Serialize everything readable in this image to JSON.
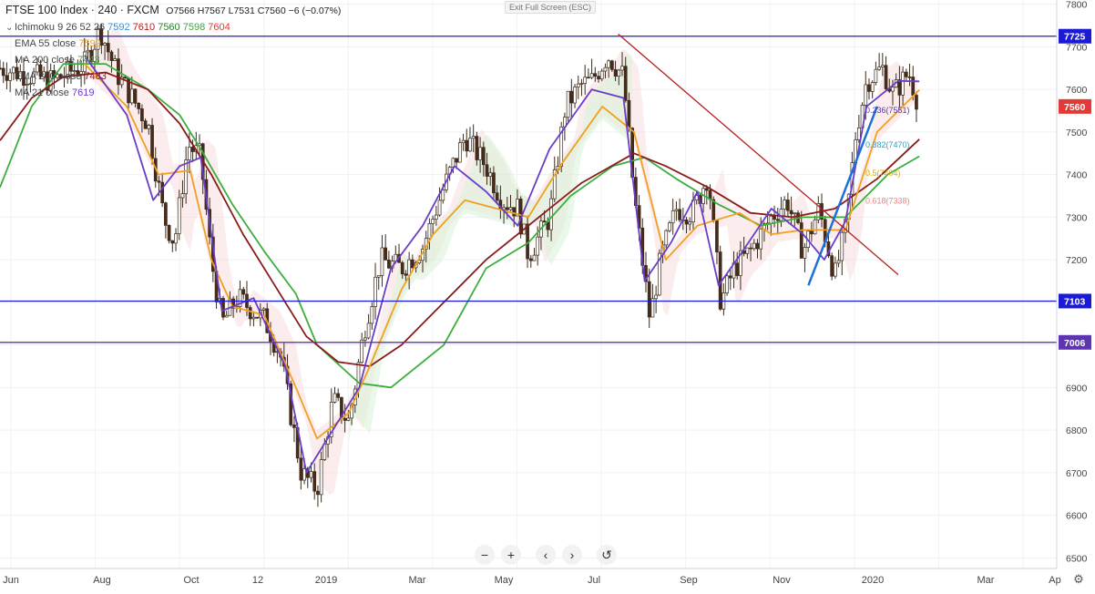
{
  "header": {
    "symbol": "FTSE 100 Index · 240 · FXCM",
    "ohlc": "O7566 H7567 L7531 C7560 −6 (−0.07%)"
  },
  "legend_rows": [
    {
      "chevron": "⌄",
      "name": "Ichimoku 9 26 52 26",
      "values": [
        {
          "text": "7592",
          "color": "#2196f3"
        },
        {
          "text": "7610",
          "color": "#b71c1c"
        },
        {
          "text": "7560",
          "color": "#2e7d32"
        },
        {
          "text": "7598",
          "color": "#43a047"
        },
        {
          "text": "7604",
          "color": "#e53935"
        }
      ]
    },
    {
      "chevron": "",
      "name": "EMA 55 close",
      "values": [
        {
          "text": "7599",
          "color": "#f0a020"
        }
      ]
    },
    {
      "chevron": "",
      "name": "MA 200 close",
      "values": [
        {
          "text": "7443",
          "color": "#43a047"
        }
      ]
    },
    {
      "chevron": "",
      "name": "EMA 200 close",
      "values": [
        {
          "text": "7483",
          "color": "#8b1a1a"
        }
      ]
    },
    {
      "chevron": "",
      "name": "MA 21 close",
      "values": [
        {
          "text": "7619",
          "color": "#6a3dc9"
        }
      ]
    }
  ],
  "toolbar": {
    "exit_fullscreen": "Exit Full Screen (ESC)",
    "zoom_out": "−",
    "zoom_in": "+",
    "scroll_left": "‹",
    "scroll_right": "›",
    "reset": "↺"
  },
  "icons": {
    "settings": "gear-icon"
  },
  "chart_data": {
    "type": "candlestick",
    "y_axis": {
      "min": 6475,
      "max": 7810,
      "ticks": [
        7800,
        7700,
        7600,
        7500,
        7400,
        7300,
        7200,
        7100,
        7000,
        6900,
        6800,
        6700,
        6600,
        6500
      ],
      "side": "right"
    },
    "x_axis_labels": [
      "Jun",
      "Aug",
      "Oct",
      "12",
      "2019",
      "Mar",
      "May",
      "Jul",
      "Sep",
      "Nov",
      "2020",
      "Mar",
      "Ap"
    ],
    "horizontal_levels": [
      {
        "value": 7725,
        "label": "7725",
        "color": "#1b1bd6"
      },
      {
        "value": 7103,
        "label": "7103",
        "color": "#1b1bd6"
      },
      {
        "value": 7006,
        "label": "7006",
        "color": "#5e35b1"
      }
    ],
    "last_price": {
      "value": 7560,
      "label": "7560",
      "color": "#e53935"
    },
    "fib_labels": [
      {
        "text": "0.236(7551)",
        "value": 7551,
        "color": "#5e35b1"
      },
      {
        "text": "0.382(7470)",
        "value": 7470,
        "color": "#26a6c8"
      },
      {
        "text": "0.5(7404)",
        "value": 7404,
        "color": "#d4b000"
      },
      {
        "text": "0.618(7338)",
        "value": 7338,
        "color": "#f08080"
      }
    ],
    "price_path": [
      [
        0,
        7650
      ],
      [
        0.05,
        7620
      ],
      [
        0.08,
        7660
      ],
      [
        0.095,
        7740
      ],
      [
        0.11,
        7640
      ],
      [
        0.14,
        7520
      ],
      [
        0.155,
        7300
      ],
      [
        0.165,
        7240
      ],
      [
        0.178,
        7470
      ],
      [
        0.19,
        7440
      ],
      [
        0.2,
        7200
      ],
      [
        0.21,
        7050
      ],
      [
        0.225,
        7110
      ],
      [
        0.25,
        7060
      ],
      [
        0.265,
        6980
      ],
      [
        0.285,
        6700
      ],
      [
        0.3,
        6660
      ],
      [
        0.315,
        6870
      ],
      [
        0.33,
        6820
      ],
      [
        0.345,
        7040
      ],
      [
        0.36,
        7200
      ],
      [
        0.38,
        7180
      ],
      [
        0.4,
        7230
      ],
      [
        0.42,
        7370
      ],
      [
        0.44,
        7490
      ],
      [
        0.46,
        7420
      ],
      [
        0.475,
        7340
      ],
      [
        0.49,
        7320
      ],
      [
        0.5,
        7210
      ],
      [
        0.52,
        7300
      ],
      [
        0.535,
        7560
      ],
      [
        0.55,
        7610
      ],
      [
        0.56,
        7620
      ],
      [
        0.575,
        7680
      ],
      [
        0.59,
        7630
      ],
      [
        0.6,
        7350
      ],
      [
        0.615,
        7060
      ],
      [
        0.625,
        7200
      ],
      [
        0.64,
        7320
      ],
      [
        0.655,
        7310
      ],
      [
        0.67,
        7400
      ],
      [
        0.682,
        7100
      ],
      [
        0.695,
        7180
      ],
      [
        0.71,
        7220
      ],
      [
        0.73,
        7300
      ],
      [
        0.745,
        7340
      ],
      [
        0.76,
        7220
      ],
      [
        0.775,
        7320
      ],
      [
        0.79,
        7160
      ],
      [
        0.8,
        7270
      ],
      [
        0.81,
        7500
      ],
      [
        0.82,
        7620
      ],
      [
        0.835,
        7650
      ],
      [
        0.845,
        7590
      ],
      [
        0.86,
        7640
      ],
      [
        0.87,
        7560
      ]
    ],
    "moving_averages": [
      {
        "name": "MA 200 close",
        "color": "#3cae3c",
        "points": [
          [
            0,
            7370
          ],
          [
            0.03,
            7560
          ],
          [
            0.06,
            7660
          ],
          [
            0.1,
            7660
          ],
          [
            0.14,
            7600
          ],
          [
            0.17,
            7540
          ],
          [
            0.19,
            7460
          ],
          [
            0.22,
            7330
          ],
          [
            0.25,
            7220
          ],
          [
            0.28,
            7120
          ],
          [
            0.3,
            7000
          ],
          [
            0.34,
            6910
          ],
          [
            0.37,
            6900
          ],
          [
            0.42,
            7000
          ],
          [
            0.46,
            7180
          ],
          [
            0.5,
            7240
          ],
          [
            0.54,
            7350
          ],
          [
            0.58,
            7420
          ],
          [
            0.61,
            7440
          ],
          [
            0.64,
            7390
          ],
          [
            0.68,
            7330
          ],
          [
            0.72,
            7280
          ],
          [
            0.76,
            7300
          ],
          [
            0.8,
            7300
          ],
          [
            0.84,
            7400
          ],
          [
            0.87,
            7443
          ]
        ]
      },
      {
        "name": "EMA 200 close",
        "color": "#8b1a1a",
        "points": [
          [
            0,
            7480
          ],
          [
            0.03,
            7580
          ],
          [
            0.06,
            7630
          ],
          [
            0.1,
            7640
          ],
          [
            0.14,
            7600
          ],
          [
            0.17,
            7520
          ],
          [
            0.2,
            7400
          ],
          [
            0.23,
            7260
          ],
          [
            0.26,
            7140
          ],
          [
            0.29,
            7020
          ],
          [
            0.32,
            6960
          ],
          [
            0.35,
            6950
          ],
          [
            0.38,
            7000
          ],
          [
            0.42,
            7100
          ],
          [
            0.46,
            7200
          ],
          [
            0.5,
            7280
          ],
          [
            0.55,
            7380
          ],
          [
            0.6,
            7450
          ],
          [
            0.63,
            7420
          ],
          [
            0.67,
            7370
          ],
          [
            0.71,
            7310
          ],
          [
            0.75,
            7300
          ],
          [
            0.79,
            7320
          ],
          [
            0.83,
            7390
          ],
          [
            0.87,
            7483
          ]
        ]
      },
      {
        "name": "EMA 55 close",
        "color": "#f0a020",
        "points": [
          [
            0.08,
            7660
          ],
          [
            0.12,
            7560
          ],
          [
            0.15,
            7400
          ],
          [
            0.18,
            7410
          ],
          [
            0.2,
            7200
          ],
          [
            0.22,
            7090
          ],
          [
            0.25,
            7070
          ],
          [
            0.28,
            6900
          ],
          [
            0.3,
            6780
          ],
          [
            0.33,
            6840
          ],
          [
            0.35,
            6950
          ],
          [
            0.38,
            7130
          ],
          [
            0.41,
            7260
          ],
          [
            0.44,
            7340
          ],
          [
            0.47,
            7320
          ],
          [
            0.5,
            7300
          ],
          [
            0.53,
            7420
          ],
          [
            0.57,
            7560
          ],
          [
            0.6,
            7500
          ],
          [
            0.63,
            7200
          ],
          [
            0.66,
            7280
          ],
          [
            0.7,
            7310
          ],
          [
            0.73,
            7260
          ],
          [
            0.76,
            7270
          ],
          [
            0.8,
            7270
          ],
          [
            0.83,
            7500
          ],
          [
            0.87,
            7599
          ]
        ]
      },
      {
        "name": "MA 21 close",
        "color": "#6a3dc9",
        "points": [
          [
            0.08,
            7680
          ],
          [
            0.12,
            7540
          ],
          [
            0.145,
            7340
          ],
          [
            0.17,
            7420
          ],
          [
            0.19,
            7440
          ],
          [
            0.21,
            7080
          ],
          [
            0.24,
            7110
          ],
          [
            0.27,
            6950
          ],
          [
            0.29,
            6700
          ],
          [
            0.31,
            6780
          ],
          [
            0.34,
            6900
          ],
          [
            0.37,
            7180
          ],
          [
            0.4,
            7280
          ],
          [
            0.43,
            7420
          ],
          [
            0.46,
            7360
          ],
          [
            0.49,
            7280
          ],
          [
            0.52,
            7460
          ],
          [
            0.56,
            7600
          ],
          [
            0.59,
            7580
          ],
          [
            0.61,
            7150
          ],
          [
            0.635,
            7240
          ],
          [
            0.66,
            7360
          ],
          [
            0.68,
            7140
          ],
          [
            0.7,
            7210
          ],
          [
            0.73,
            7320
          ],
          [
            0.76,
            7260
          ],
          [
            0.78,
            7200
          ],
          [
            0.8,
            7290
          ],
          [
            0.82,
            7560
          ],
          [
            0.85,
            7620
          ],
          [
            0.87,
            7619
          ]
        ]
      }
    ],
    "trendlines": [
      {
        "name": "downtrend",
        "color": "#b22222",
        "from": [
          0.585,
          7730
        ],
        "to": [
          0.85,
          7165
        ]
      },
      {
        "name": "uptrend",
        "color": "#1e6fd8",
        "from": [
          0.765,
          7140
        ],
        "to": [
          0.83,
          7560
        ]
      }
    ]
  }
}
